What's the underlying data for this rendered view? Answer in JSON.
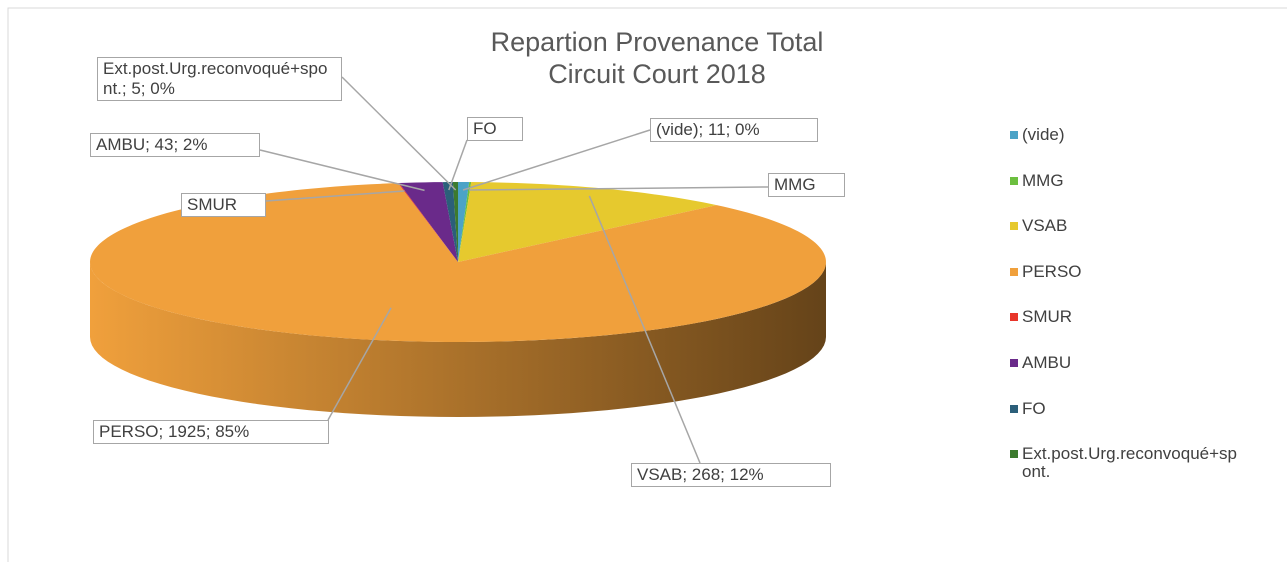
{
  "chart_data": {
    "type": "pie3d",
    "title": "Repartion Provenance Total Circuit Court 2018",
    "categories": [
      "(vide)",
      "MMG",
      "VSAB",
      "PERSO",
      "SMUR",
      "AMBU",
      "FO",
      "Ext.post.Urg.reconvoqué+spont."
    ],
    "values": [
      11,
      2,
      268,
      1925,
      1,
      43,
      10,
      5
    ],
    "value_labels": [
      "(vide); 11; 0%",
      "MMG",
      "VSAB; 268; 12%",
      "PERSO; 1925; 85%",
      "SMUR",
      "AMBU; 43; 2%",
      "FO",
      "Ext.post.Urg.reconvoqué+spont.; 5; 0%"
    ],
    "colors": [
      "#4ba3c7",
      "#6cbf3f",
      "#e6c92e",
      "#f0a03c",
      "#e8352a",
      "#6a2a8a",
      "#2b5f7a",
      "#3c7a2e"
    ],
    "legend": "right"
  }
}
